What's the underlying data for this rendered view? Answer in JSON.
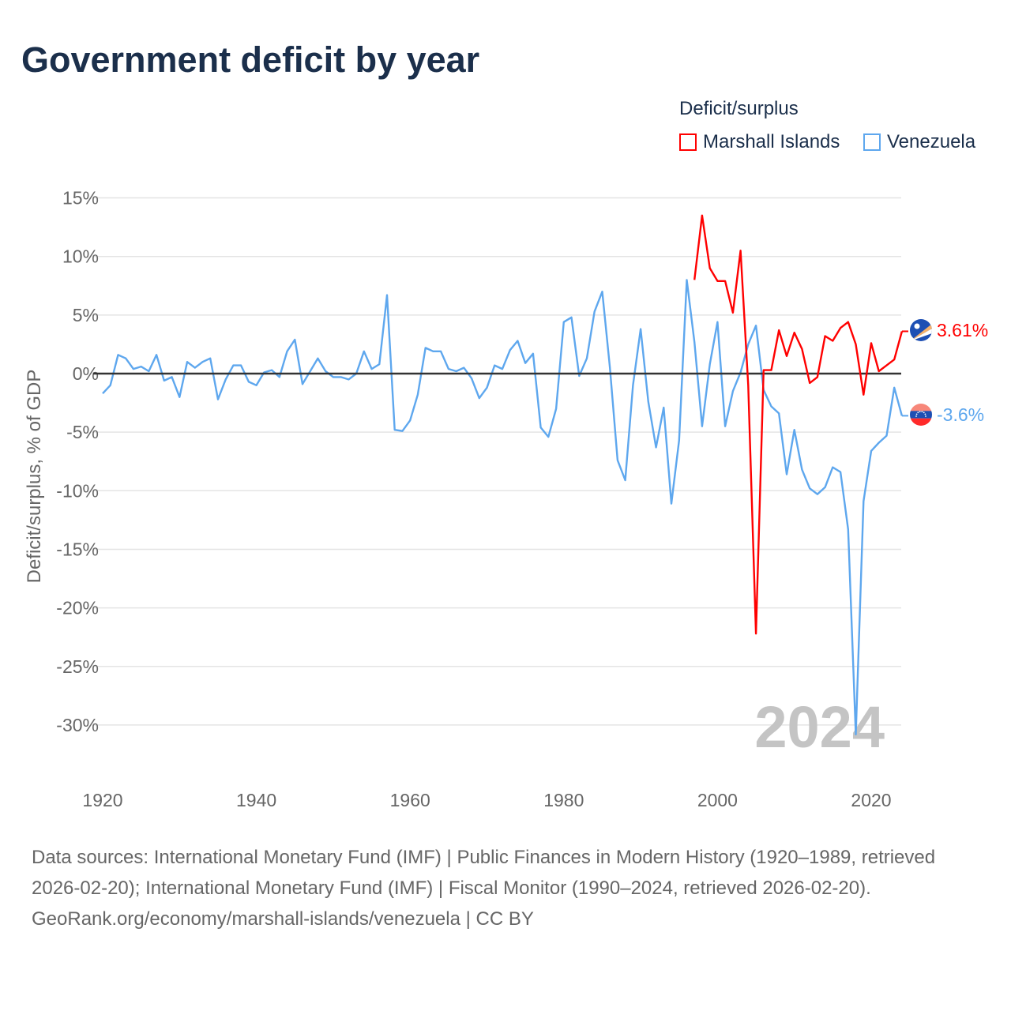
{
  "title": "Government deficit by year",
  "legend": {
    "title": "Deficit/surplus",
    "items": [
      {
        "name": "Marshall Islands",
        "color": "#ff0000"
      },
      {
        "name": "Venezuela",
        "color": "#5ea7ee"
      }
    ]
  },
  "footer": {
    "sources": "Data sources: International Monetary Fund (IMF) | Public Finances in Modern History (1920–1989, retrieved 2026-02-20); International Monetary Fund (IMF) | Fiscal Monitor (1990–2024, retrieved 2026-02-20).",
    "credit": "GeoRank.org/economy/marshall-islands/venezuela | CC BY"
  },
  "chart_data": {
    "type": "line",
    "title": "Government deficit by year",
    "xlabel": "",
    "ylabel": "Deficit/surplus, % of GDP",
    "xlim": [
      1920,
      2024
    ],
    "ylim": [
      -32,
      16
    ],
    "x_ticks": [
      1920,
      1940,
      1960,
      1980,
      2000,
      2020
    ],
    "x_tick_labels": [
      "1920",
      "1940",
      "1960",
      "1980",
      "2000",
      "2020"
    ],
    "y_ticks": [
      15,
      10,
      5,
      0,
      -5,
      -10,
      -15,
      -20,
      -25,
      -30
    ],
    "y_tick_labels": [
      "15%",
      "10%",
      "5%",
      "0%",
      "-5%",
      "-10%",
      "-15%",
      "-20%",
      "-25%",
      "-30%"
    ],
    "watermark_year": "2024",
    "grid": true,
    "legend_position": "top-right",
    "series": [
      {
        "name": "Marshall Islands",
        "color": "#ff0000",
        "end_label": "3.61%",
        "flag": "marshall-islands",
        "x": [
          1997,
          1998,
          1999,
          2000,
          2001,
          2002,
          2003,
          2004,
          2005,
          2006,
          2007,
          2008,
          2009,
          2010,
          2011,
          2012,
          2013,
          2014,
          2015,
          2016,
          2017,
          2018,
          2019,
          2020,
          2021,
          2022,
          2023,
          2024
        ],
        "values": [
          8.0,
          13.5,
          9.0,
          7.9,
          7.9,
          5.2,
          10.5,
          -1.0,
          -22.2,
          0.3,
          0.3,
          3.7,
          1.5,
          3.5,
          2.1,
          -0.8,
          -0.3,
          3.2,
          2.8,
          3.9,
          4.4,
          2.5,
          -1.8,
          2.6,
          0.2,
          0.7,
          1.2,
          3.61
        ]
      },
      {
        "name": "Venezuela",
        "color": "#5ea7ee",
        "end_label": "-3.6%",
        "flag": "venezuela",
        "x": [
          1920,
          1921,
          1922,
          1923,
          1924,
          1925,
          1926,
          1927,
          1928,
          1929,
          1930,
          1931,
          1932,
          1933,
          1934,
          1935,
          1936,
          1937,
          1938,
          1939,
          1940,
          1941,
          1942,
          1943,
          1944,
          1945,
          1946,
          1947,
          1948,
          1949,
          1950,
          1951,
          1952,
          1953,
          1954,
          1955,
          1956,
          1957,
          1958,
          1959,
          1960,
          1961,
          1962,
          1963,
          1964,
          1965,
          1966,
          1967,
          1968,
          1969,
          1970,
          1971,
          1972,
          1973,
          1974,
          1975,
          1976,
          1977,
          1978,
          1979,
          1980,
          1981,
          1982,
          1983,
          1984,
          1985,
          1986,
          1987,
          1988,
          1989,
          1990,
          1991,
          1992,
          1993,
          1994,
          1995,
          1996,
          1997,
          1998,
          1999,
          2000,
          2001,
          2002,
          2003,
          2004,
          2005,
          2006,
          2007,
          2008,
          2009,
          2010,
          2011,
          2012,
          2013,
          2014,
          2015,
          2016,
          2017,
          2018,
          2019,
          2020,
          2021,
          2022,
          2023,
          2024
        ],
        "values": [
          -1.7,
          -1.0,
          1.6,
          1.3,
          0.4,
          0.6,
          0.2,
          1.6,
          -0.6,
          -0.3,
          -2.0,
          1.0,
          0.5,
          1.0,
          1.3,
          -2.2,
          -0.5,
          0.7,
          0.7,
          -0.7,
          -1.0,
          0.1,
          0.3,
          -0.3,
          1.9,
          2.9,
          -0.9,
          0.2,
          1.3,
          0.2,
          -0.3,
          -0.3,
          -0.5,
          0.0,
          1.9,
          0.4,
          0.8,
          6.7,
          -4.8,
          -4.9,
          -4.0,
          -1.8,
          2.2,
          1.9,
          1.9,
          0.4,
          0.2,
          0.5,
          -0.4,
          -2.1,
          -1.2,
          0.7,
          0.4,
          2.0,
          2.8,
          0.9,
          1.7,
          -4.6,
          -5.4,
          -3.0,
          4.4,
          4.8,
          -0.2,
          1.3,
          5.3,
          7.0,
          0.5,
          -7.4,
          -9.1,
          -1.0,
          3.8,
          -2.4,
          -6.3,
          -2.9,
          -11.1,
          -5.7,
          8.0,
          2.7,
          -4.5,
          0.8,
          4.4,
          -4.5,
          -1.5,
          0.1,
          2.5,
          4.1,
          -1.4,
          -2.8,
          -3.4,
          -8.6,
          -4.8,
          -8.2,
          -9.8,
          -10.3,
          -9.7,
          -8.0,
          -8.4,
          -13.3,
          -30.8,
          -10.9,
          -6.6,
          -5.9,
          -5.3,
          -1.2,
          -3.6
        ]
      }
    ]
  }
}
